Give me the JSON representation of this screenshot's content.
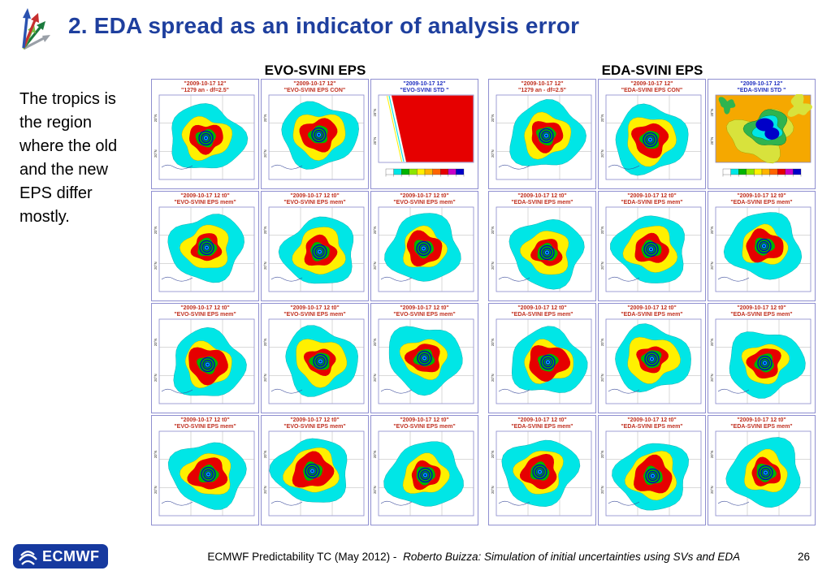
{
  "slide": {
    "title": "2. EDA spread as an indicator of analysis error",
    "note": "The tropics is the region where the old and the new EPS differ mostly.",
    "page_number": "26"
  },
  "columns": [
    {
      "header": "EVO-SVINI EPS",
      "panels": [
        {
          "line1": "\"2009-10-17 12\"",
          "line2": "\"1279 an - df=2.5\"",
          "kind": "map",
          "std": false
        },
        {
          "line1": "\"2009-10-17 12\"",
          "line2": "\"EVO-SVINI EPS CON\"",
          "kind": "map",
          "std": false
        },
        {
          "line1": "\"2009-10-17 12\"",
          "line2": "\"EVO-SVINI STD \"",
          "kind": "stdred",
          "std": true
        },
        {
          "line1": "\"2009-10-17 12 t0\"",
          "line2": "\"EVO-SVINI EPS mem\"",
          "kind": "map",
          "std": false
        },
        {
          "line1": "\"2009-10-17 12 t0\"",
          "line2": "\"EVO-SVINI EPS mem\"",
          "kind": "map",
          "std": false
        },
        {
          "line1": "\"2009-10-17 12 t0\"",
          "line2": "\"EVO-SVINI EPS mem\"",
          "kind": "map",
          "std": false
        },
        {
          "line1": "\"2009-10-17 12 t0\"",
          "line2": "\"EVO-SVINI EPS mem\"",
          "kind": "map",
          "std": false
        },
        {
          "line1": "\"2009-10-17 12 t0\"",
          "line2": "\"EVO-SVINI EPS mem\"",
          "kind": "map",
          "std": false
        },
        {
          "line1": "\"2009-10-17 12 t0\"",
          "line2": "\"EVO-SVINI EPS mem\"",
          "kind": "map",
          "std": false
        },
        {
          "line1": "\"2009-10-17 12 t0\"",
          "line2": "\"EVO-SVINI EPS mem\"",
          "kind": "map",
          "std": false
        },
        {
          "line1": "\"2009-10-17 12 t0\"",
          "line2": "\"EVO-SVINI EPS mem\"",
          "kind": "map",
          "std": false
        },
        {
          "line1": "\"2009-10-17 12 t0\"",
          "line2": "\"EVO-SVINI EPS mem\"",
          "kind": "map",
          "std": false
        }
      ]
    },
    {
      "header": "EDA-SVINI EPS",
      "panels": [
        {
          "line1": "\"2009-10-17 12\"",
          "line2": "\"1279 an - df=2.5\"",
          "kind": "map",
          "std": false
        },
        {
          "line1": "\"2009-10-17 12\"",
          "line2": "\"EDA-SVINI EPS CON\"",
          "kind": "map",
          "std": false
        },
        {
          "line1": "\"2009-10-17 12\"",
          "line2": "\"EDA-SVINI STD \"",
          "kind": "stdeda",
          "std": true
        },
        {
          "line1": "\"2009-10-17 12 t0\"",
          "line2": "\"EDA-SVINI EPS mem\"",
          "kind": "map",
          "std": false
        },
        {
          "line1": "\"2009-10-17 12 t0\"",
          "line2": "\"EDA-SVINI EPS mem\"",
          "kind": "map",
          "std": false
        },
        {
          "line1": "\"2009-10-17 12 t0\"",
          "line2": "\"EDA-SVINI EPS mem\"",
          "kind": "map",
          "std": false
        },
        {
          "line1": "\"2009-10-17 12 t0\"",
          "line2": "\"EDA-SVINI EPS mem\"",
          "kind": "map",
          "std": false
        },
        {
          "line1": "\"2009-10-17 12 t0\"",
          "line2": "\"EDA-SVINI EPS mem\"",
          "kind": "map",
          "std": false
        },
        {
          "line1": "\"2009-10-17 12 t0\"",
          "line2": "\"EDA-SVINI EPS mem\"",
          "kind": "map",
          "std": false
        },
        {
          "line1": "\"2009-10-17 12 t0\"",
          "line2": "\"EDA-SVINI EPS mem\"",
          "kind": "map",
          "std": false
        },
        {
          "line1": "\"2009-10-17 12 t0\"",
          "line2": "\"EDA-SVINI EPS mem\"",
          "kind": "map",
          "std": false
        },
        {
          "line1": "\"2009-10-17 12 t0\"",
          "line2": "\"EDA-SVINI EPS mem\"",
          "kind": "map",
          "std": false
        }
      ]
    }
  ],
  "map": {
    "lat_tick": "20°N"
  },
  "footer": {
    "logo_text": "ECMWF",
    "text_plain": "ECMWF Predictability TC (May 2012) -",
    "text_italic": "Roberto Buizza: Simulation of initial uncertainties using SVs and EDA"
  },
  "colors": {
    "title": "#1e3f9e",
    "label_normal": "#c03020",
    "label_std": "#2030c0",
    "frame": "#8888cc",
    "cyan": "#00e6e6",
    "yellow": "#fff000",
    "red": "#e60000",
    "green": "#00b400",
    "blue": "#0000c8",
    "orange": "#f5a800",
    "colorbar": [
      "#ffffff",
      "#00e6e6",
      "#00b400",
      "#8ce600",
      "#fff000",
      "#ffb400",
      "#ff6400",
      "#e60000",
      "#c800c8",
      "#0000c8"
    ]
  }
}
